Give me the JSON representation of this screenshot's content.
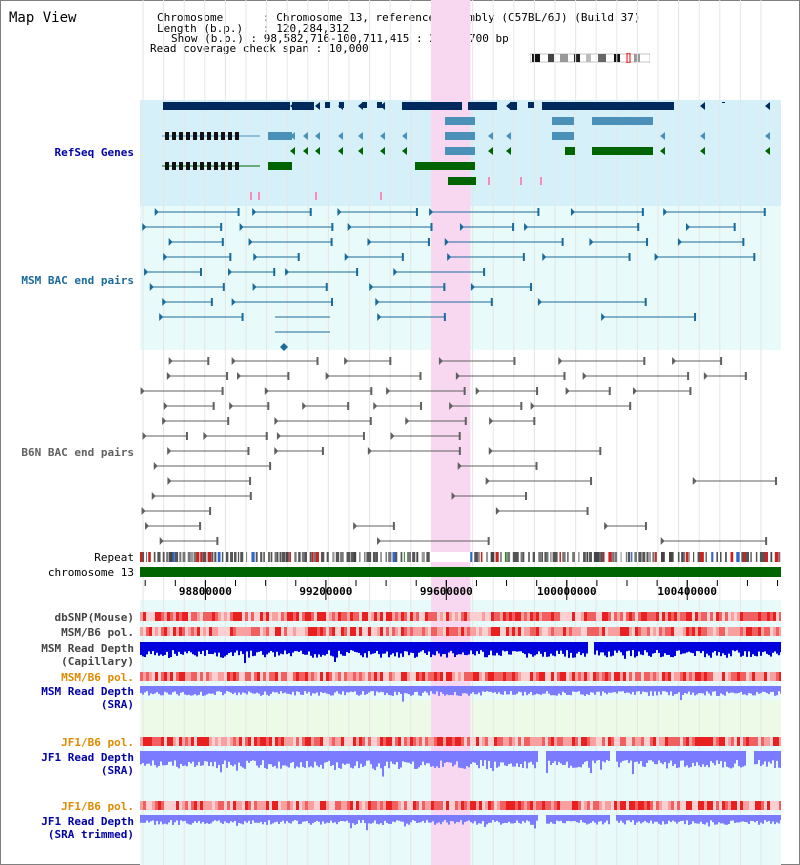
{
  "window": {
    "title": "Map View"
  },
  "info": {
    "chromosome_label": "Chromosome",
    "chromosome_value": "Chromosome 13, reference assembly (C57BL/6J) (Build 37)",
    "length_label": "Length (b.p.)",
    "length_value": "120,284,312",
    "show_label": "Show (b.p.)",
    "show_value": "98,582,716-100,711,415 : 2,128,700 bp",
    "coverage_label": "Read coverage check span",
    "coverage_value": "10,000"
  },
  "tracks": {
    "refseq": "RefSeq Genes",
    "msm_bac": "MSM BAC end pairs",
    "b6n_bac": "B6N BAC end pairs",
    "repeat": "Repeat",
    "chromosome": "chromosome 13",
    "dbsnp": "dbSNP(Mouse)",
    "msm_b6_pol": "MSM/B6 pol.",
    "msm_depth_cap_1": "MSM Read Depth",
    "msm_depth_cap_2": "(Capillary)",
    "msm_b6_pol_sra": "MSM/B6 pol.",
    "msm_depth_sra_1": "MSM Read Depth",
    "msm_depth_sra_2": "(SRA)",
    "jf1_pol": "JF1/B6 pol.",
    "jf1_depth_1": "JF1 Read Depth",
    "jf1_depth_2": "(SRA)",
    "jf1_pol_trim": "JF1/B6 pol.",
    "jf1_trim_1": "JF1 Read Depth",
    "jf1_trim_2": "(SRA trimmed)"
  },
  "axis": {
    "ticks": [
      "98800000",
      "99200000",
      "99600000",
      "100000000",
      "100400000"
    ],
    "start": 98582716,
    "end": 100711415
  },
  "highlight": {
    "start": 99550000,
    "end": 99680000
  },
  "colors": {
    "refseq_bg": "#d6f0fa",
    "bac_bg": "#e8fafa",
    "highlight": "#f8d8f0",
    "dark_blue": "#002a5e",
    "mid_blue": "#4a90b8",
    "green": "#006400",
    "msm_line": "#1a6b9a",
    "b6n_line": "#606060",
    "depth_blue": "#0000dd",
    "depth_light": "#7b7bff",
    "pol_red": "#e83030",
    "label_blue": "#0000aa",
    "label_orange": "#e08a00"
  }
}
